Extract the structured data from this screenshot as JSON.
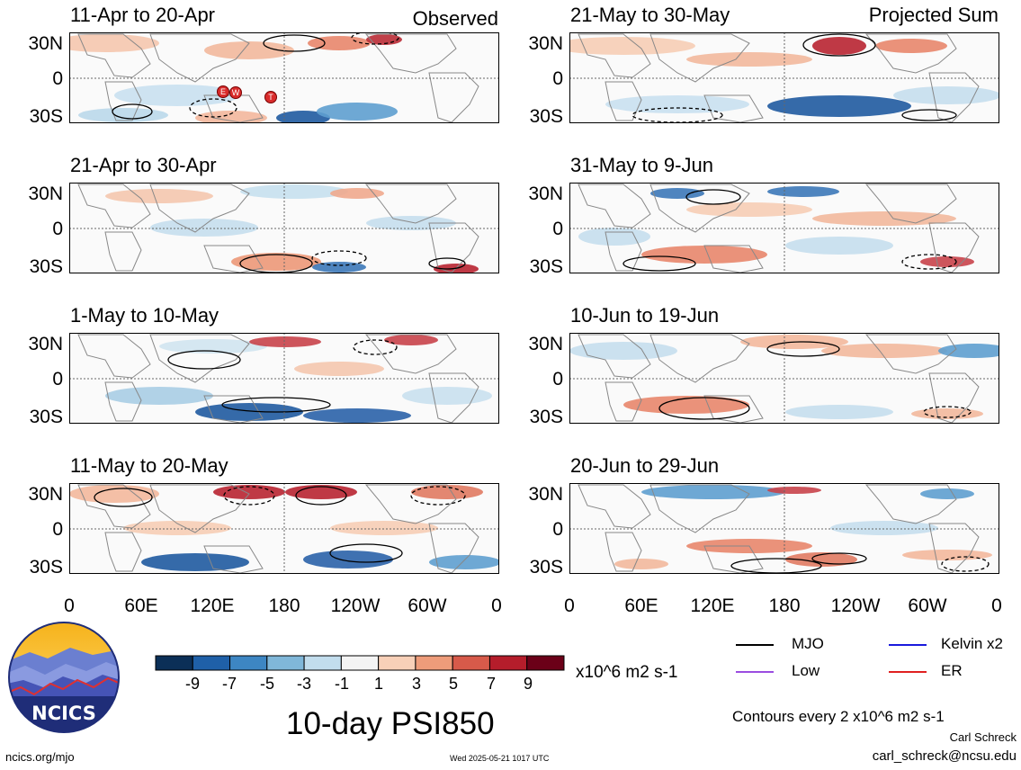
{
  "panels": [
    {
      "title": "11-Apr to 20-Apr",
      "tag": "Observed"
    },
    {
      "title": "21-Apr to 30-Apr",
      "tag": ""
    },
    {
      "title": "1-May to 10-May",
      "tag": ""
    },
    {
      "title": "11-May to 20-May",
      "tag": ""
    },
    {
      "title": "21-May to 30-May",
      "tag": "Projected Sum"
    },
    {
      "title": "31-May to 9-Jun",
      "tag": ""
    },
    {
      "title": "10-Jun to 19-Jun",
      "tag": ""
    },
    {
      "title": "20-Jun to 29-Jun",
      "tag": ""
    }
  ],
  "lat_ticks": [
    "30N",
    "0",
    "30S"
  ],
  "lon_ticks": [
    "0",
    "60E",
    "120E",
    "180",
    "120W",
    "60W",
    "0"
  ],
  "storm_markers": [
    "E",
    "W",
    "T"
  ],
  "colorbar": {
    "ticks": [
      "-9",
      "-7",
      "-5",
      "-3",
      "-1",
      "1",
      "3",
      "5",
      "7",
      "9"
    ],
    "units": "x10^6 m2 s-1",
    "colors": [
      "#0b2f57",
      "#1f60a8",
      "#3d86c3",
      "#80b7d9",
      "#c2dded",
      "#f4f4f4",
      "#f8d0b8",
      "#ee9c7a",
      "#d75a4a",
      "#b51d2b",
      "#6b0018"
    ]
  },
  "legend": {
    "mjo": {
      "label": "MJO",
      "color": "#000000"
    },
    "kelvin": {
      "label": "Kelvin x2",
      "color": "#1a1adc"
    },
    "low": {
      "label": "Low",
      "color": "#9b4de0"
    },
    "er": {
      "label": "ER",
      "color": "#e02020"
    }
  },
  "main_title": "10-day PSI850",
  "contours_note": "Contours every 2 x10^6 m2 s-1",
  "author": "Carl Schreck",
  "email": "carl_schreck@ncsu.edu",
  "site": "ncics.org/mjo",
  "timestamp": "Wed 2025-05-21 1017 UTC",
  "logo_text": "NCICS"
}
